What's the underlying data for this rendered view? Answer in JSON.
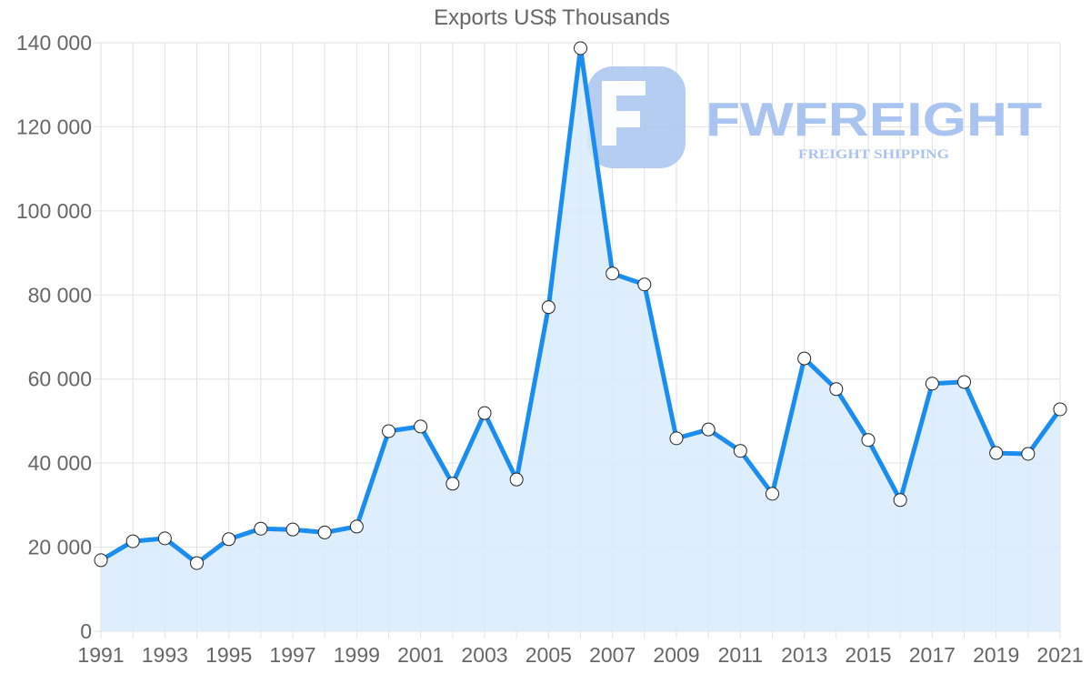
{
  "chart_data": {
    "type": "line",
    "title": "Exports US$ Thousands",
    "xlabel": "",
    "ylabel": "",
    "ylim": [
      0,
      140000
    ],
    "yticks": [
      "0",
      "20 000",
      "40 000",
      "60 000",
      "80 000",
      "100 000",
      "120 000",
      "140 000"
    ],
    "xtick_labels": [
      "1991",
      "1993",
      "1995",
      "1997",
      "1999",
      "2001",
      "2003",
      "2005",
      "2007",
      "2009",
      "2011",
      "2013",
      "2015",
      "2017",
      "2019",
      "2021"
    ],
    "grid": true,
    "legend": null,
    "fill": "area below line",
    "x": [
      1991,
      1992,
      1993,
      1994,
      1995,
      1996,
      1997,
      1998,
      1999,
      2000,
      2001,
      2002,
      2003,
      2004,
      2005,
      2006,
      2007,
      2008,
      2009,
      2010,
      2011,
      2012,
      2013,
      2014,
      2015,
      2016,
      2017,
      2018,
      2019,
      2020,
      2021
    ],
    "series": [
      {
        "name": "Exports US$ Thousands",
        "values": [
          16900,
          21400,
          22100,
          16200,
          21900,
          24400,
          24200,
          23500,
          24900,
          47600,
          48700,
          35100,
          51900,
          36100,
          77100,
          138700,
          85100,
          82500,
          45900,
          48000,
          42900,
          32700,
          64900,
          57600,
          45500,
          31200,
          58900,
          59300,
          42400,
          42200,
          52800
        ]
      }
    ],
    "colors": {
      "line": "#1a8ef0",
      "fill": "#d8ebfc",
      "marker_fill": "#ffffff",
      "marker_stroke": "#222222",
      "grid": "#e2e2e2",
      "text": "#666666"
    }
  },
  "watermark": {
    "brand": "FWFREIGHT",
    "tagline": "FREIGHT SHIPPING",
    "color": "#a9c4f0"
  }
}
